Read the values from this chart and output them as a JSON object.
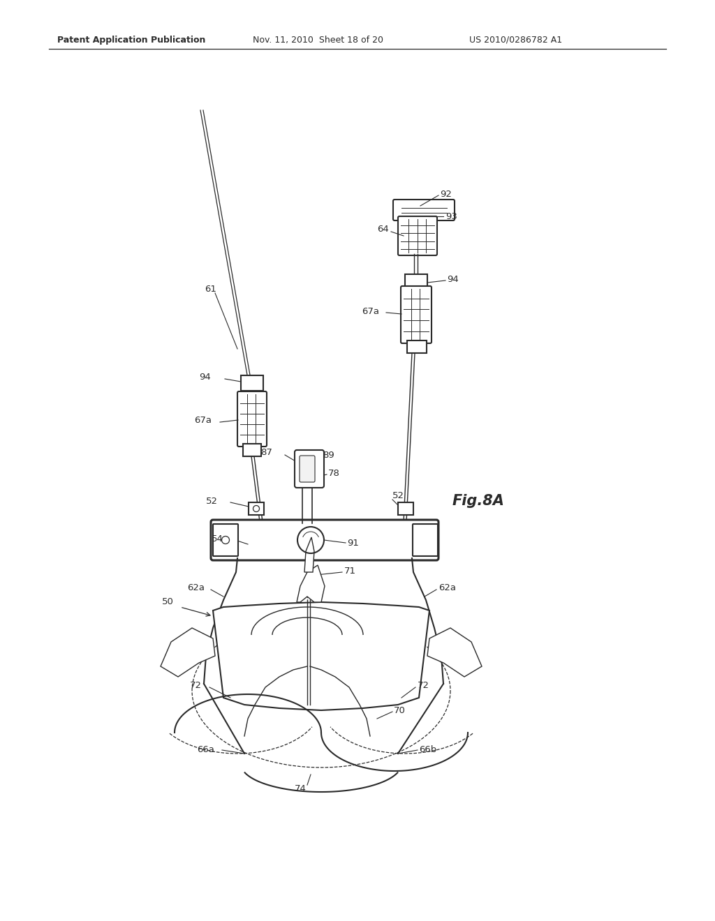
{
  "bg_color": "#ffffff",
  "line_color": "#2a2a2a",
  "header_left": "Patent Application Publication",
  "header_mid": "Nov. 11, 2010  Sheet 18 of 20",
  "header_right": "US 2010/0286782 A1",
  "fig_label": "Fig.8A"
}
